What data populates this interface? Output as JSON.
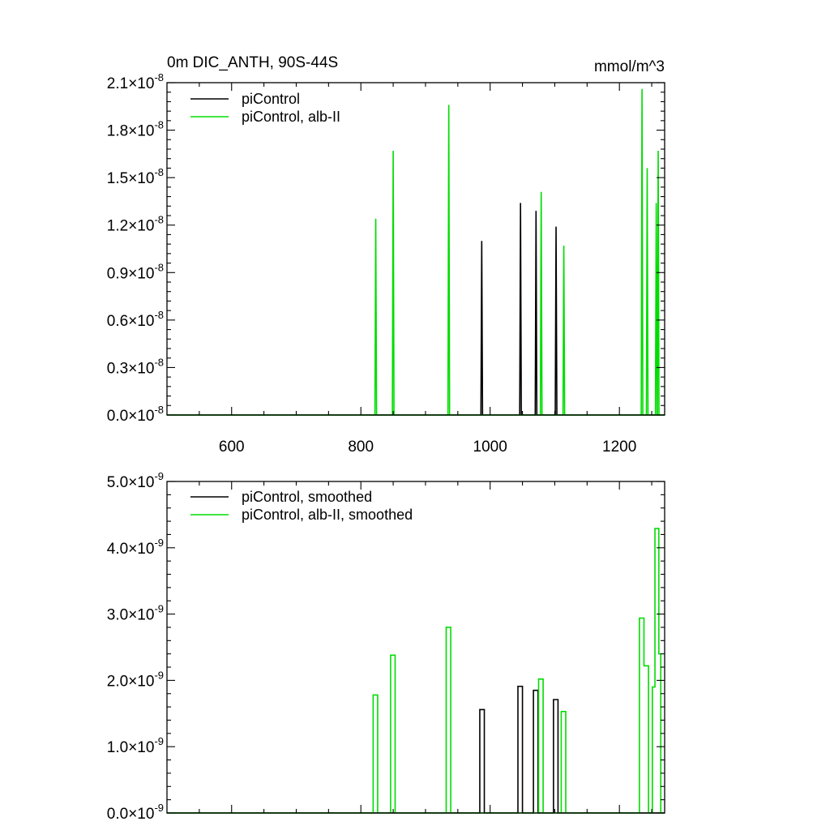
{
  "chart_data": [
    {
      "type": "line",
      "title": "0m DIC_ANTH, 90S-44S",
      "units": "mmol/m^3",
      "xlim": [
        500,
        1270
      ],
      "ylim": [
        0,
        2.1e-08
      ],
      "x_ticks": [
        600,
        800,
        1000,
        1200
      ],
      "x_tick_labels": [
        "600",
        "800",
        "1000",
        "1200"
      ],
      "y_ticks": [
        0,
        3e-09,
        6e-09,
        9e-09,
        1.2e-08,
        1.5e-08,
        1.8e-08,
        2.1e-08
      ],
      "y_tick_labels": [
        {
          "mantissa": "0.0",
          "times": "×",
          "base": "10",
          "exponent": "-8"
        },
        {
          "mantissa": "0.3",
          "times": "×",
          "base": "10",
          "exponent": "-8"
        },
        {
          "mantissa": "0.6",
          "times": "×",
          "base": "10",
          "exponent": "-8"
        },
        {
          "mantissa": "0.9",
          "times": "×",
          "base": "10",
          "exponent": "-8"
        },
        {
          "mantissa": "1.2",
          "times": "×",
          "base": "10",
          "exponent": "-8"
        },
        {
          "mantissa": "1.5",
          "times": "×",
          "base": "10",
          "exponent": "-8"
        },
        {
          "mantissa": "1.8",
          "times": "×",
          "base": "10",
          "exponent": "-8"
        },
        {
          "mantissa": "2.1",
          "times": "×",
          "base": "10",
          "exponent": "-8"
        }
      ],
      "legend_position": "top-left",
      "grid": false,
      "series": [
        {
          "name": "piControl",
          "color": "#000000",
          "style": "spikes",
          "points": [
            [
              987,
              1.1e-08
            ],
            [
              1047,
              1.34e-08
            ],
            [
              1071,
              1.29e-08
            ],
            [
              1102,
              1.19e-08
            ]
          ]
        },
        {
          "name": "piControl, alb-II",
          "color": "#00dd00",
          "style": "spikes",
          "points": [
            [
              823,
              1.24e-08
            ],
            [
              850,
              1.67e-08
            ],
            [
              936,
              1.96e-08
            ],
            [
              1079,
              1.41e-08
            ],
            [
              1114,
              1.07e-08
            ],
            [
              1235,
              2.06e-08
            ],
            [
              1243,
              1.56e-08
            ],
            [
              1257,
              1.34e-08
            ],
            [
              1260,
              1.67e-08
            ]
          ]
        }
      ]
    },
    {
      "type": "line",
      "title": "",
      "units": "",
      "xlim": [
        500,
        1270
      ],
      "ylim": [
        0,
        5e-09
      ],
      "x_ticks": [
        600,
        800,
        1000,
        1200
      ],
      "x_tick_labels": [],
      "y_ticks": [
        0,
        1e-09,
        2e-09,
        3e-09,
        4e-09,
        5e-09
      ],
      "y_tick_labels": [
        {
          "mantissa": "0.0",
          "times": "×",
          "base": "10",
          "exponent": "-9"
        },
        {
          "mantissa": "1.0",
          "times": "×",
          "base": "10",
          "exponent": "-9"
        },
        {
          "mantissa": "2.0",
          "times": "×",
          "base": "10",
          "exponent": "-9"
        },
        {
          "mantissa": "3.0",
          "times": "×",
          "base": "10",
          "exponent": "-9"
        },
        {
          "mantissa": "4.0",
          "times": "×",
          "base": "10",
          "exponent": "-9"
        },
        {
          "mantissa": "5.0",
          "times": "×",
          "base": "10",
          "exponent": "-9"
        }
      ],
      "legend_position": "top-left",
      "grid": false,
      "series": [
        {
          "name": "piControl, smoothed",
          "color": "#000000",
          "style": "boxes",
          "boxes": [
            [
              984,
              991,
              1.56e-09
            ],
            [
              1043,
              1050,
              1.91e-09
            ],
            [
              1067,
              1074,
              1.85e-09
            ],
            [
              1098,
              1105,
              1.71e-09
            ]
          ]
        },
        {
          "name": "piControl, alb-II, smoothed",
          "color": "#00dd00",
          "style": "boxes",
          "boxes": [
            [
              819,
              826,
              1.78e-09
            ],
            [
              846,
              853,
              2.38e-09
            ],
            [
              932,
              939,
              2.8e-09
            ],
            [
              1075,
              1082,
              2.02e-09
            ],
            [
              1110,
              1117,
              1.53e-09
            ],
            [
              1231,
              1238,
              2.94e-09
            ],
            [
              1238,
              1245,
              2.22e-09
            ],
            [
              1251,
              1255,
              1.9e-09
            ],
            [
              1255,
              1261,
              4.29e-09
            ],
            [
              1261,
              1264,
              2.4e-09
            ]
          ]
        }
      ]
    }
  ]
}
